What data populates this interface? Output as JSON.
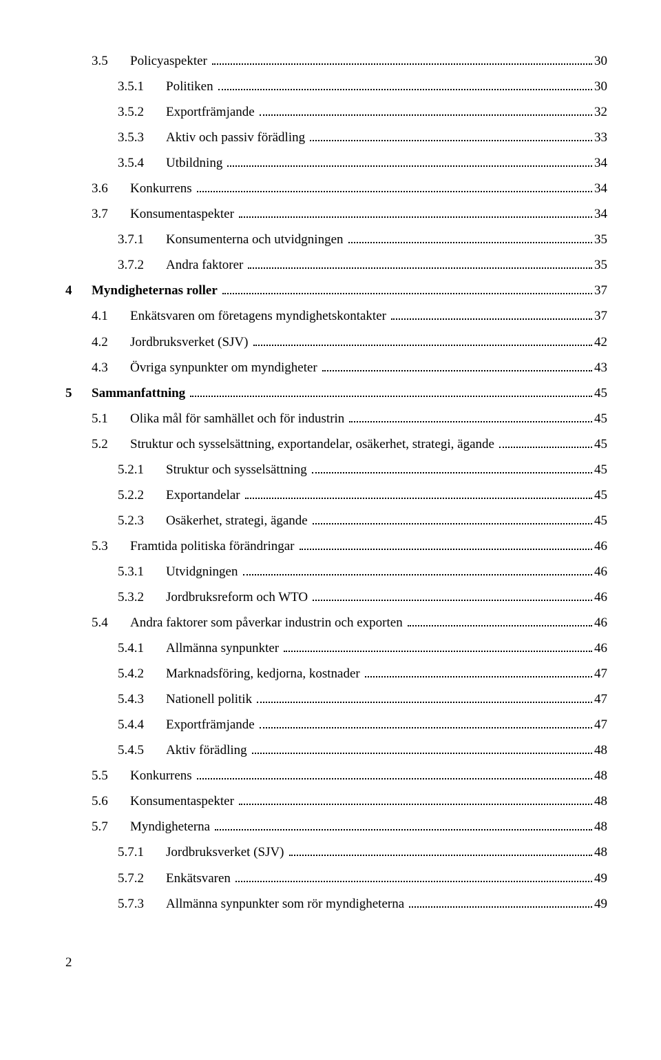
{
  "entries": [
    {
      "num": "3.5",
      "title": "Policyaspekter",
      "page": "30",
      "indent": 1,
      "numw": "w2",
      "bold": false
    },
    {
      "num": "3.5.1",
      "title": "Politiken",
      "page": "30",
      "indent": 2,
      "numw": "w3",
      "bold": false
    },
    {
      "num": "3.5.2",
      "title": "Exportfrämjande",
      "page": "32",
      "indent": 2,
      "numw": "w3",
      "bold": false
    },
    {
      "num": "3.5.3",
      "title": "Aktiv och passiv förädling",
      "page": "33",
      "indent": 2,
      "numw": "w3",
      "bold": false
    },
    {
      "num": "3.5.4",
      "title": "Utbildning",
      "page": "34",
      "indent": 2,
      "numw": "w3",
      "bold": false
    },
    {
      "num": "3.6",
      "title": "Konkurrens",
      "page": "34",
      "indent": 1,
      "numw": "w2",
      "bold": false
    },
    {
      "num": "3.7",
      "title": "Konsumentaspekter",
      "page": "34",
      "indent": 1,
      "numw": "w2",
      "bold": false
    },
    {
      "num": "3.7.1",
      "title": "Konsumenterna och utvidgningen",
      "page": "35",
      "indent": 2,
      "numw": "w3",
      "bold": false
    },
    {
      "num": "3.7.2",
      "title": "Andra faktorer",
      "page": "35",
      "indent": 2,
      "numw": "w3",
      "bold": false
    },
    {
      "num": "4",
      "title": "Myndigheternas roller",
      "page": "37",
      "indent": 0,
      "numw": "w1",
      "bold": true
    },
    {
      "num": "4.1",
      "title": "Enkätsvaren om företagens myndighetskontakter",
      "page": "37",
      "indent": 1,
      "numw": "w2",
      "bold": false
    },
    {
      "num": "4.2",
      "title": "Jordbruksverket (SJV)",
      "page": "42",
      "indent": 1,
      "numw": "w2",
      "bold": false
    },
    {
      "num": "4.3",
      "title": "Övriga synpunkter om myndigheter",
      "page": "43",
      "indent": 1,
      "numw": "w2",
      "bold": false
    },
    {
      "num": "5",
      "title": "Sammanfattning",
      "page": "45",
      "indent": 0,
      "numw": "w1",
      "bold": true
    },
    {
      "num": "5.1",
      "title": "Olika mål för samhället och för industrin",
      "page": "45",
      "indent": 1,
      "numw": "w2",
      "bold": false
    },
    {
      "num": "5.2",
      "title": "Struktur och sysselsättning, exportandelar, osäkerhet, strategi, ägande",
      "page": "45",
      "indent": 1,
      "numw": "w2",
      "bold": false
    },
    {
      "num": "5.2.1",
      "title": "Struktur och sysselsättning",
      "page": "45",
      "indent": 2,
      "numw": "w3",
      "bold": false
    },
    {
      "num": "5.2.2",
      "title": "Exportandelar",
      "page": "45",
      "indent": 2,
      "numw": "w3",
      "bold": false
    },
    {
      "num": "5.2.3",
      "title": "Osäkerhet, strategi, ägande",
      "page": "45",
      "indent": 2,
      "numw": "w3",
      "bold": false
    },
    {
      "num": "5.3",
      "title": "Framtida politiska förändringar",
      "page": "46",
      "indent": 1,
      "numw": "w2",
      "bold": false
    },
    {
      "num": "5.3.1",
      "title": "Utvidgningen",
      "page": "46",
      "indent": 2,
      "numw": "w3",
      "bold": false
    },
    {
      "num": "5.3.2",
      "title": "Jordbruksreform och WTO",
      "page": "46",
      "indent": 2,
      "numw": "w3",
      "bold": false
    },
    {
      "num": "5.4",
      "title": "Andra faktorer som påverkar industrin och exporten",
      "page": "46",
      "indent": 1,
      "numw": "w2",
      "bold": false
    },
    {
      "num": "5.4.1",
      "title": "Allmänna synpunkter",
      "page": "46",
      "indent": 2,
      "numw": "w3",
      "bold": false
    },
    {
      "num": "5.4.2",
      "title": "Marknadsföring, kedjorna, kostnader",
      "page": "47",
      "indent": 2,
      "numw": "w3",
      "bold": false
    },
    {
      "num": "5.4.3",
      "title": "Nationell politik",
      "page": "47",
      "indent": 2,
      "numw": "w3",
      "bold": false
    },
    {
      "num": "5.4.4",
      "title": "Exportfrämjande",
      "page": "47",
      "indent": 2,
      "numw": "w3",
      "bold": false
    },
    {
      "num": "5.4.5",
      "title": "Aktiv förädling",
      "page": "48",
      "indent": 2,
      "numw": "w3",
      "bold": false
    },
    {
      "num": "5.5",
      "title": "Konkurrens",
      "page": "48",
      "indent": 1,
      "numw": "w2",
      "bold": false
    },
    {
      "num": "5.6",
      "title": "Konsumentaspekter",
      "page": "48",
      "indent": 1,
      "numw": "w2",
      "bold": false
    },
    {
      "num": "5.7",
      "title": "Myndigheterna",
      "page": "48",
      "indent": 1,
      "numw": "w2",
      "bold": false
    },
    {
      "num": "5.7.1",
      "title": "Jordbruksverket (SJV)",
      "page": "48",
      "indent": 2,
      "numw": "w3",
      "bold": false
    },
    {
      "num": "5.7.2",
      "title": "Enkätsvaren",
      "page": "49",
      "indent": 2,
      "numw": "w3",
      "bold": false
    },
    {
      "num": "5.7.3",
      "title": "Allmänna synpunkter som rör myndigheterna",
      "page": "49",
      "indent": 2,
      "numw": "w3",
      "bold": false
    }
  ],
  "page_number": "2"
}
